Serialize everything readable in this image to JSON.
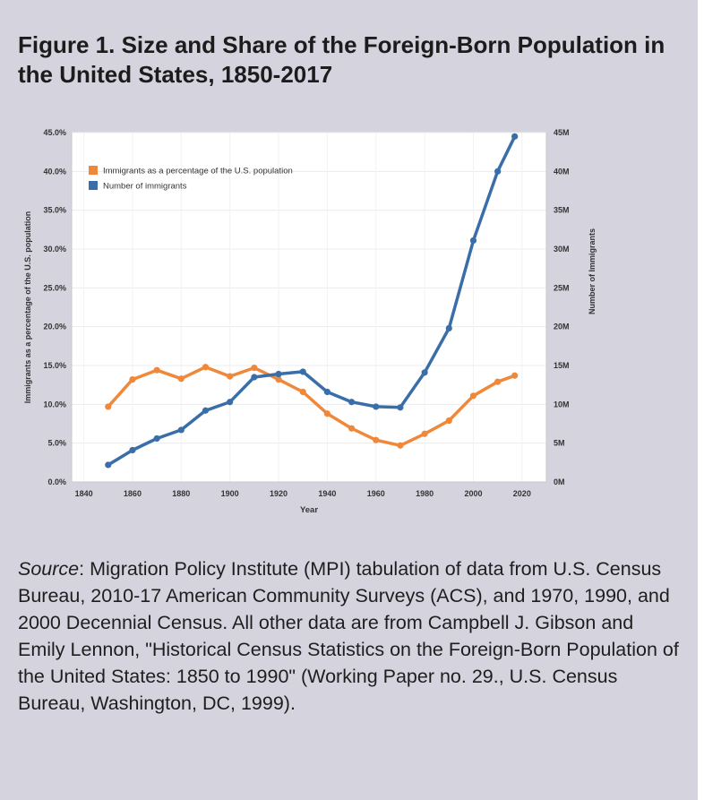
{
  "figure": {
    "title": "Figure 1. Size and Share of the Foreign-Born Population in the United States, 1850-2017"
  },
  "source": {
    "label": "Source",
    "text": ": Migration Policy Institute (MPI) tabulation of data from U.S. Census Bureau, 2010-17 American Community Surveys (ACS), and 1970, 1990, and 2000 Decennial Census. All other data are from Campbell J. Gibson and Emily Lennon, \"Historical Census Statistics on the Foreign-Born Population of the United States: 1850 to 1990\" (Working Paper no. 29., U.S. Census Bureau, Washington, DC, 1999)."
  },
  "colors": {
    "percentage": "#f0883a",
    "number": "#3a6ea8"
  },
  "chart_data": {
    "type": "line",
    "xlabel": "Year",
    "ylabel_left": "Immigrants as a percentage of the U.S. population",
    "ylabel_right": "Number of Immigrants",
    "x_ticks": [
      "1840",
      "1860",
      "1880",
      "1900",
      "1920",
      "1940",
      "1960",
      "1980",
      "2000",
      "2020"
    ],
    "x_tick_values": [
      1840,
      1860,
      1880,
      1900,
      1920,
      1940,
      1960,
      1980,
      2000,
      2020
    ],
    "y_left_ticks": [
      "0.0%",
      "5.0%",
      "10.0%",
      "15.0%",
      "20.0%",
      "25.0%",
      "30.0%",
      "35.0%",
      "40.0%",
      "45.0%"
    ],
    "y_left_tick_values": [
      0,
      5,
      10,
      15,
      20,
      25,
      30,
      35,
      40,
      45
    ],
    "y_right_ticks": [
      "0M",
      "5M",
      "10M",
      "15M",
      "20M",
      "25M",
      "30M",
      "35M",
      "40M",
      "45M"
    ],
    "y_right_tick_values": [
      0,
      5,
      10,
      15,
      20,
      25,
      30,
      35,
      40,
      45
    ],
    "xlim": [
      1835,
      2030
    ],
    "ylim_left": [
      0,
      45
    ],
    "ylim_right": [
      0,
      45
    ],
    "series": [
      {
        "name": "Immigrants as a percentage of the U.S. population",
        "axis": "left",
        "x": [
          1850,
          1860,
          1870,
          1880,
          1890,
          1900,
          1910,
          1920,
          1930,
          1940,
          1950,
          1960,
          1970,
          1980,
          1990,
          2000,
          2010,
          2017
        ],
        "values": [
          9.7,
          13.2,
          14.4,
          13.3,
          14.8,
          13.6,
          14.7,
          13.2,
          11.6,
          8.8,
          6.9,
          5.4,
          4.7,
          6.2,
          7.9,
          11.1,
          12.9,
          13.7
        ]
      },
      {
        "name": "Number of immigrants",
        "axis": "right",
        "x": [
          1850,
          1860,
          1870,
          1880,
          1890,
          1900,
          1910,
          1920,
          1930,
          1940,
          1950,
          1960,
          1970,
          1980,
          1990,
          2000,
          2010,
          2017
        ],
        "values": [
          2.2,
          4.1,
          5.6,
          6.7,
          9.2,
          10.3,
          13.5,
          13.9,
          14.2,
          11.6,
          10.3,
          9.7,
          9.6,
          14.1,
          19.8,
          31.1,
          40.0,
          44.5
        ]
      }
    ]
  }
}
